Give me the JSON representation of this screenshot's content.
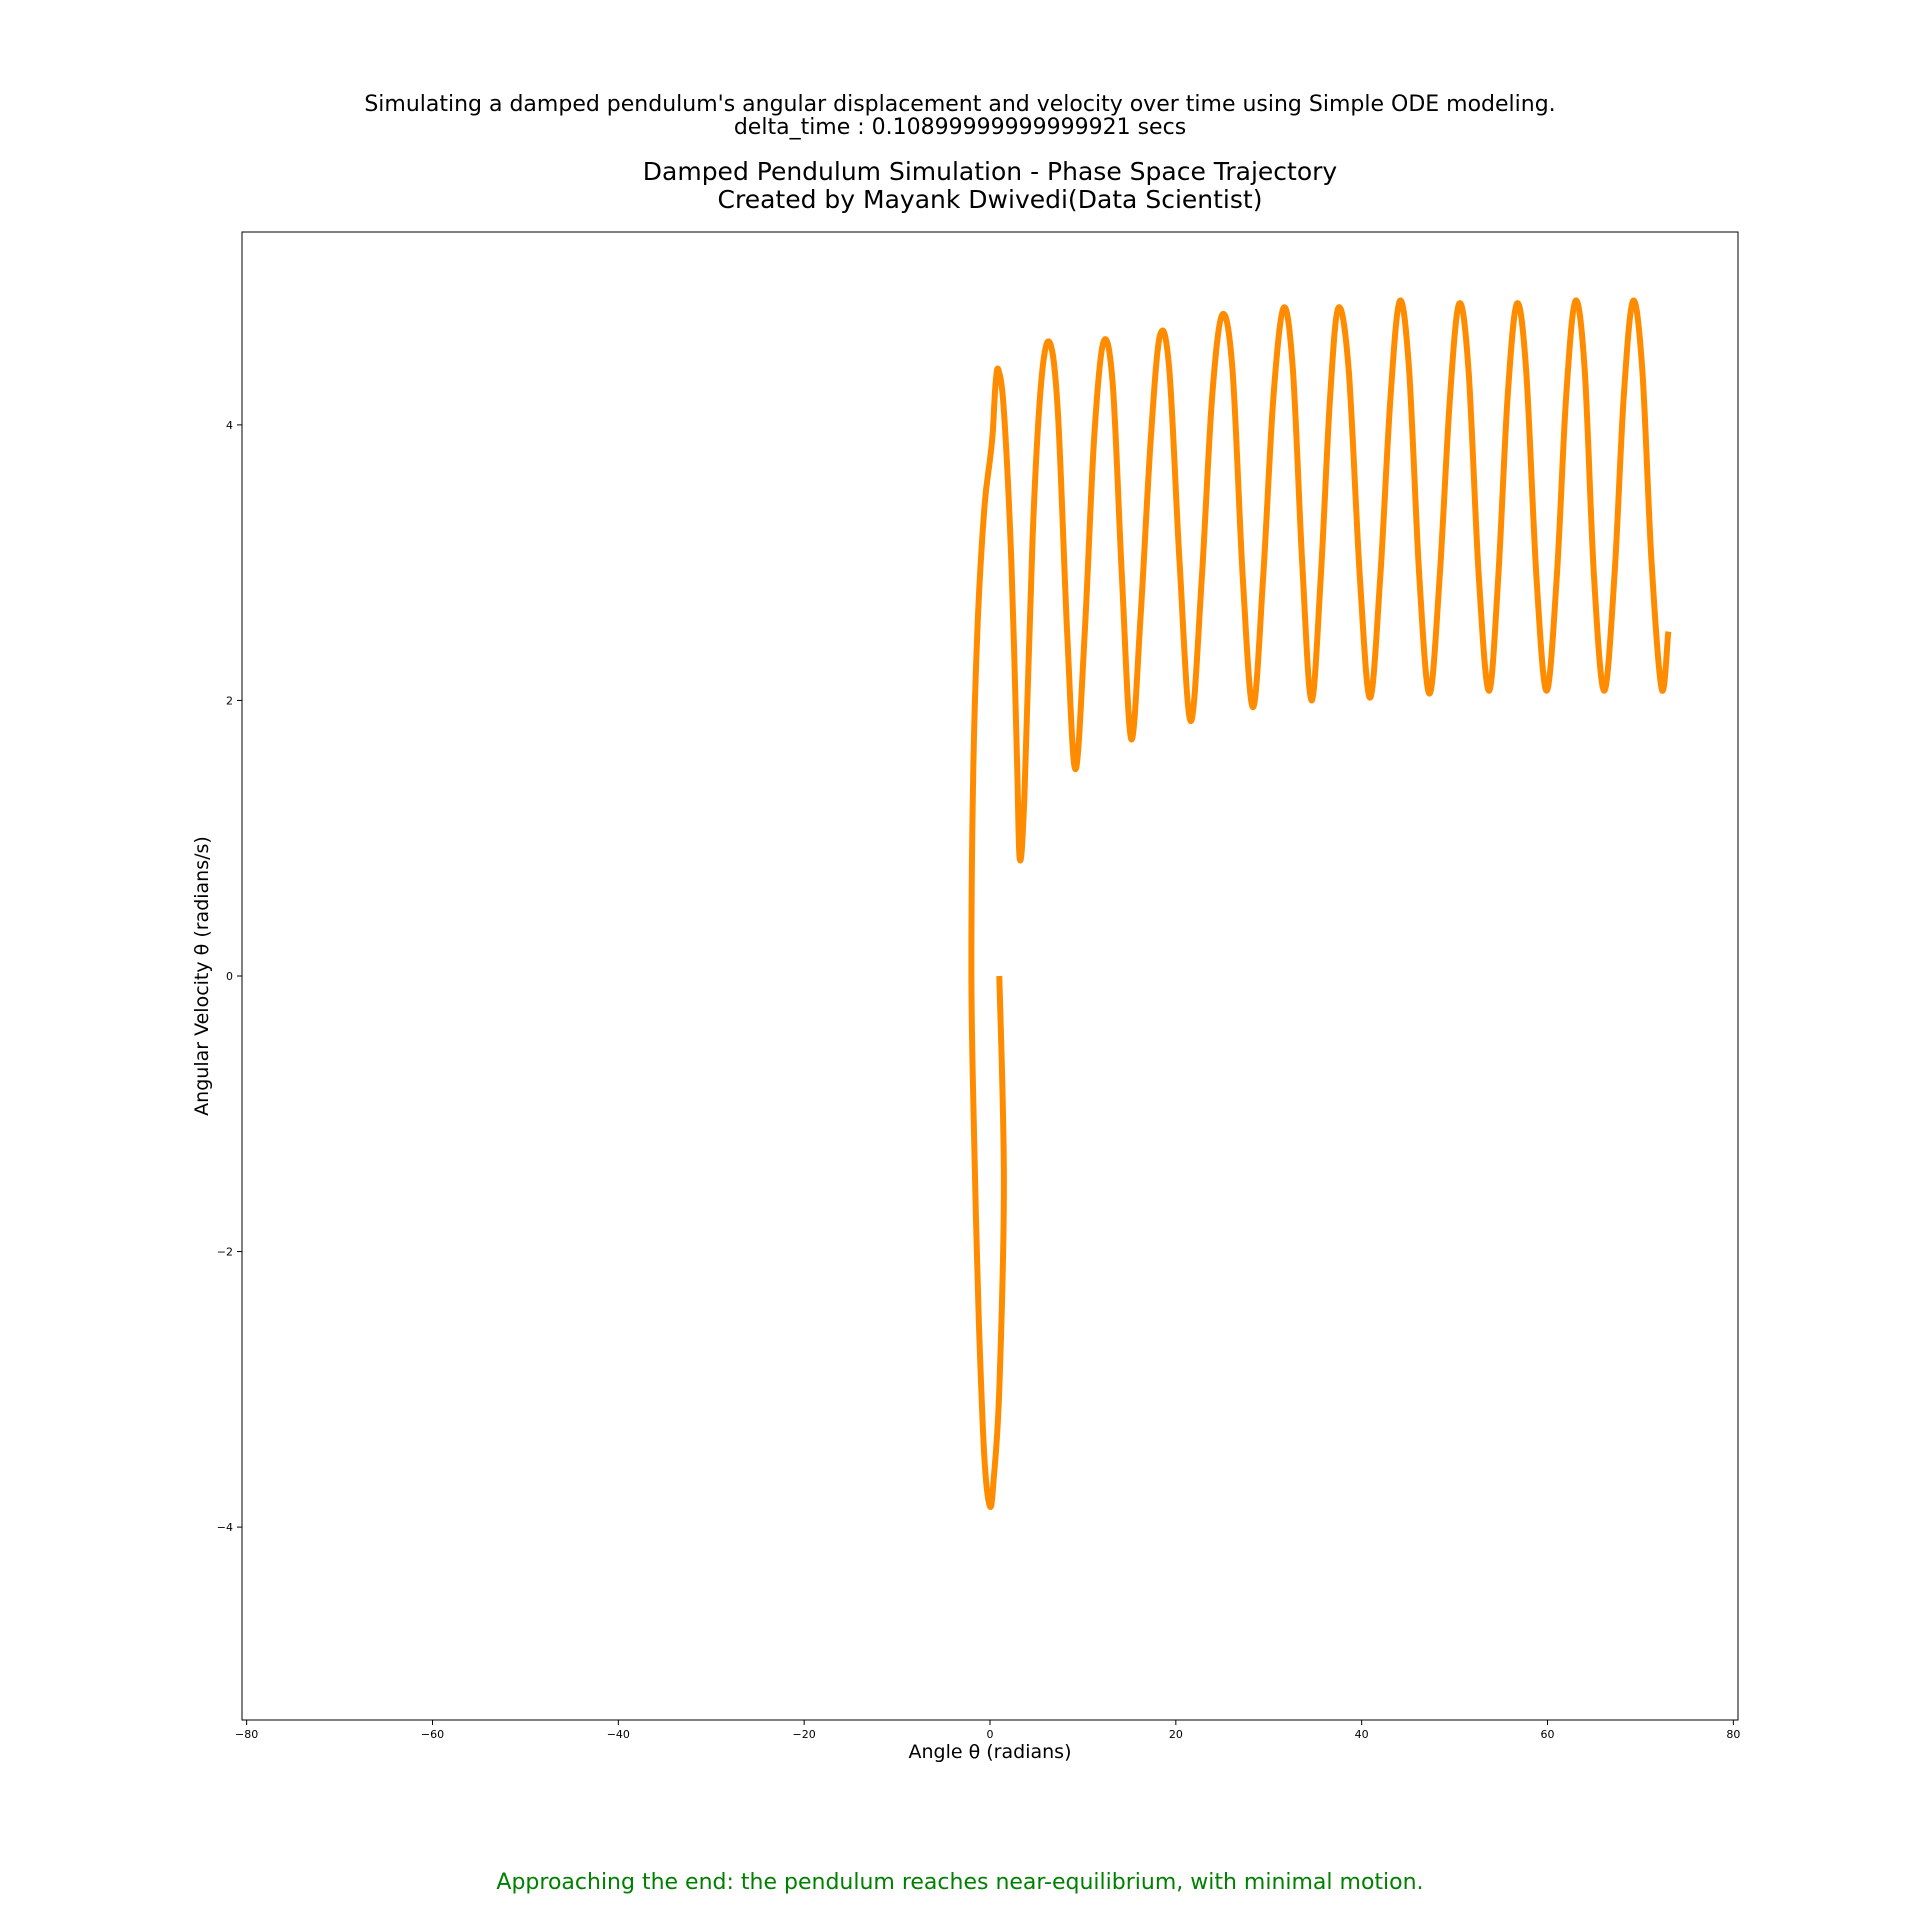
{
  "header": {
    "line1": "Simulating a damped pendulum's angular displacement and velocity over time using Simple ODE modeling.",
    "line2": "delta_time : 0.10899999999999921 secs"
  },
  "caption": "Approaching the end: the pendulum reaches near-equilibrium, with minimal motion.",
  "colors": {
    "series": "#ff8c00",
    "caption": "#008000"
  },
  "chart_data": {
    "type": "line",
    "title": "Damped Pendulum Simulation - Phase Space Trajectory",
    "subtitle": "Created by Mayank Dwivedi(Data Scientist)",
    "xlabel": "Angle θ (radians)",
    "ylabel": "Angular Velocity θ (radians/s)",
    "xlim": [
      -80.5,
      80.5
    ],
    "ylim": [
      -5.4,
      5.4
    ],
    "xticks": [
      -80,
      -60,
      -40,
      -20,
      0,
      20,
      40,
      60,
      80
    ],
    "yticks": [
      -4,
      -2,
      0,
      2,
      4
    ],
    "xtick_labels": [
      "−80",
      "−60",
      "−40",
      "−20",
      "0",
      "20",
      "40",
      "60",
      "80"
    ],
    "ytick_labels": [
      "−4",
      "−2",
      "0",
      "2",
      "4"
    ],
    "grid": false,
    "series": [
      {
        "color": "#ff8c00",
        "points": [
          [
            1.0,
            0.0
          ],
          [
            1.5,
            -1.5
          ],
          [
            1.0,
            -3.0
          ],
          [
            0.4,
            -3.65
          ],
          [
            0.0,
            -3.85
          ],
          [
            -0.6,
            -3.5
          ],
          [
            -1.2,
            -2.5
          ],
          [
            -1.7,
            -1.2
          ],
          [
            -2.0,
            0.0
          ],
          [
            -1.8,
            1.5
          ],
          [
            -1.3,
            2.6
          ],
          [
            -0.6,
            3.4
          ],
          [
            0.0,
            3.75
          ],
          [
            0.3,
            3.95
          ],
          [
            0.6,
            4.3
          ],
          [
            0.9,
            4.4
          ],
          [
            1.5,
            4.1
          ],
          [
            2.3,
            3.0
          ],
          [
            2.9,
            1.6
          ],
          [
            3.2,
            0.85
          ],
          [
            3.7,
            1.3
          ],
          [
            4.6,
            3.2
          ],
          [
            5.5,
            4.3
          ],
          [
            6.4,
            4.6
          ],
          [
            7.3,
            4.1
          ],
          [
            8.3,
            2.5
          ],
          [
            9.2,
            1.5
          ],
          [
            10.2,
            2.5
          ],
          [
            11.2,
            3.9
          ],
          [
            12.2,
            4.6
          ],
          [
            13.2,
            4.3
          ],
          [
            14.2,
            2.9
          ],
          [
            15.2,
            1.72
          ],
          [
            16.2,
            2.6
          ],
          [
            17.3,
            3.9
          ],
          [
            18.3,
            4.65
          ],
          [
            19.3,
            4.4
          ],
          [
            20.4,
            3.0
          ],
          [
            21.6,
            1.85
          ],
          [
            22.8,
            2.9
          ],
          [
            23.9,
            4.2
          ],
          [
            25.0,
            4.8
          ],
          [
            26.1,
            4.4
          ],
          [
            27.2,
            2.9
          ],
          [
            28.3,
            1.95
          ],
          [
            29.4,
            2.9
          ],
          [
            30.5,
            4.2
          ],
          [
            31.6,
            4.85
          ],
          [
            32.6,
            4.4
          ],
          [
            33.6,
            3.0
          ],
          [
            34.6,
            2.0
          ],
          [
            35.6,
            2.9
          ],
          [
            36.6,
            4.2
          ],
          [
            37.5,
            4.85
          ],
          [
            38.6,
            4.4
          ],
          [
            39.8,
            2.9
          ],
          [
            40.9,
            2.02
          ],
          [
            42.0,
            2.9
          ],
          [
            43.1,
            4.2
          ],
          [
            44.1,
            4.9
          ],
          [
            45.1,
            4.4
          ],
          [
            46.2,
            2.9
          ],
          [
            47.3,
            2.05
          ],
          [
            48.4,
            2.9
          ],
          [
            49.5,
            4.2
          ],
          [
            50.5,
            4.88
          ],
          [
            51.5,
            4.4
          ],
          [
            52.6,
            2.9
          ],
          [
            53.7,
            2.07
          ],
          [
            54.7,
            2.9
          ],
          [
            55.7,
            4.2
          ],
          [
            56.7,
            4.88
          ],
          [
            57.7,
            4.4
          ],
          [
            58.8,
            2.9
          ],
          [
            59.9,
            2.07
          ],
          [
            61.0,
            2.9
          ],
          [
            62.0,
            4.2
          ],
          [
            63.0,
            4.9
          ],
          [
            64.0,
            4.4
          ],
          [
            65.0,
            2.9
          ],
          [
            66.1,
            2.07
          ],
          [
            67.2,
            2.9
          ],
          [
            68.2,
            4.2
          ],
          [
            69.2,
            4.9
          ],
          [
            70.2,
            4.4
          ],
          [
            71.2,
            3.0
          ],
          [
            72.3,
            2.08
          ],
          [
            73.0,
            2.5
          ]
        ]
      }
    ]
  }
}
